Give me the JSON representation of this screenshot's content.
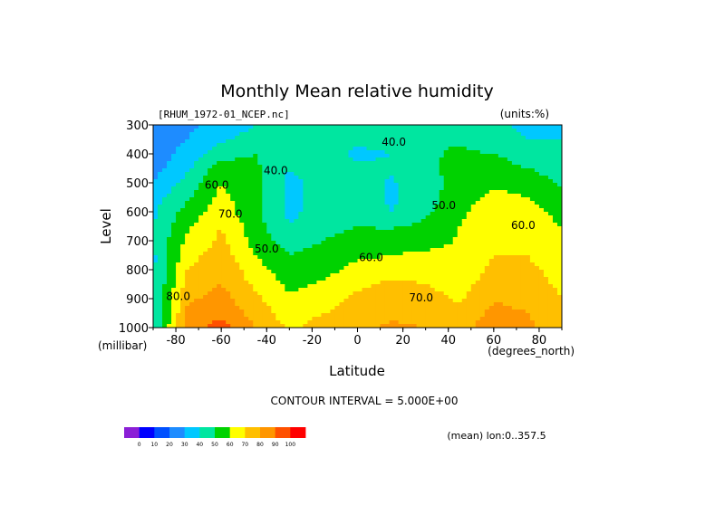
{
  "chart_data": {
    "type": "heatmap",
    "title": "Monthly Mean relative humidity",
    "file_label": "[RHUM_1972-01_NCEP.nc]",
    "units_label": "(units:%)",
    "xlabel": "Latitude",
    "ylabel": "Level",
    "x_unit_label": "(degrees_north)",
    "y_unit_label": "(millibar)",
    "xlim": [
      -90,
      90
    ],
    "ylim": [
      1000,
      300
    ],
    "x_ticks": [
      "-80",
      "-60",
      "-40",
      "-20",
      "0",
      "20",
      "40",
      "60",
      "80"
    ],
    "y_ticks": [
      "300",
      "400",
      "500",
      "600",
      "700",
      "800",
      "900",
      "1000"
    ],
    "contour_interval_label": "CONTOUR INTERVAL = 5.000E+00",
    "mean_label": "(mean) lon:0..357.5",
    "contour_labels": [
      {
        "text": "40.0",
        "lat": 16,
        "lev": 372
      },
      {
        "text": "40.0",
        "lat": -36,
        "lev": 470
      },
      {
        "text": "50.0",
        "lat": -40,
        "lev": 740
      },
      {
        "text": "50.0",
        "lat": 38,
        "lev": 590
      },
      {
        "text": "60.0",
        "lat": -62,
        "lev": 520
      },
      {
        "text": "60.0",
        "lat": 6,
        "lev": 770
      },
      {
        "text": "60.0",
        "lat": 73,
        "lev": 660
      },
      {
        "text": "70.0",
        "lat": 28,
        "lev": 910
      },
      {
        "text": "70.0",
        "lat": -56,
        "lev": 620
      },
      {
        "text": "80.0",
        "lat": -79,
        "lev": 905
      }
    ],
    "colorbar": {
      "colors": [
        "#8b1fd6",
        "#0000ff",
        "#0050ff",
        "#1e8cff",
        "#00c8ff",
        "#00e6a0",
        "#00d200",
        "#ffff00",
        "#ffbf00",
        "#ff9600",
        "#ff5000",
        "#ff0000"
      ],
      "labels": [
        "0",
        "10",
        "20",
        "30",
        "40",
        "50",
        "60",
        "70",
        "80",
        "90",
        "100"
      ]
    },
    "levels": [
      1000,
      950,
      900,
      850,
      800,
      750,
      700,
      650,
      600,
      550,
      500,
      450,
      400,
      350,
      300
    ],
    "latitudes": [
      -90,
      -75,
      -60,
      -45,
      -30,
      -15,
      0,
      15,
      30,
      45,
      60,
      75,
      90
    ],
    "values": [
      [
        38,
        86,
        94,
        80,
        68,
        74,
        78,
        82,
        80,
        76,
        86,
        82,
        74
      ],
      [
        38,
        82,
        88,
        76,
        65,
        70,
        74,
        78,
        76,
        72,
        83,
        80,
        72
      ],
      [
        38,
        78,
        84,
        72,
        61,
        65,
        72,
        75,
        73,
        69,
        79,
        77,
        70
      ],
      [
        38,
        74,
        80,
        68,
        58,
        61,
        68,
        72,
        70,
        66,
        75,
        74,
        68
      ],
      [
        38,
        70,
        78,
        64,
        54,
        57,
        63,
        66,
        66,
        64,
        72,
        71,
        68
      ],
      [
        38,
        66,
        75,
        60,
        50,
        54,
        58,
        60,
        62,
        62,
        70,
        70,
        66
      ],
      [
        40,
        62,
        72,
        56,
        45,
        50,
        54,
        54,
        56,
        61,
        70,
        67,
        62
      ],
      [
        40,
        58,
        70,
        54,
        40,
        46,
        50,
        49,
        52,
        60,
        70,
        66,
        60
      ],
      [
        38,
        54,
        66,
        52,
        38,
        44,
        47,
        40,
        48,
        57,
        69,
        65,
        56
      ],
      [
        36,
        48,
        63,
        52,
        37,
        44,
        46,
        38,
        46,
        55,
        63,
        60,
        52
      ],
      [
        30,
        44,
        60,
        52,
        37,
        44,
        44,
        39,
        45,
        55,
        58,
        55,
        49
      ],
      [
        26,
        38,
        55,
        52,
        40,
        46,
        42,
        41,
        47,
        54,
        55,
        50,
        46
      ],
      [
        24,
        34,
        46,
        50,
        44,
        45,
        38,
        40,
        48,
        52,
        50,
        44,
        42
      ],
      [
        22,
        30,
        38,
        44,
        48,
        46,
        42,
        44,
        50,
        48,
        44,
        40,
        40
      ],
      [
        20,
        28,
        34,
        40,
        48,
        48,
        44,
        46,
        48,
        44,
        42,
        38,
        38
      ]
    ]
  }
}
